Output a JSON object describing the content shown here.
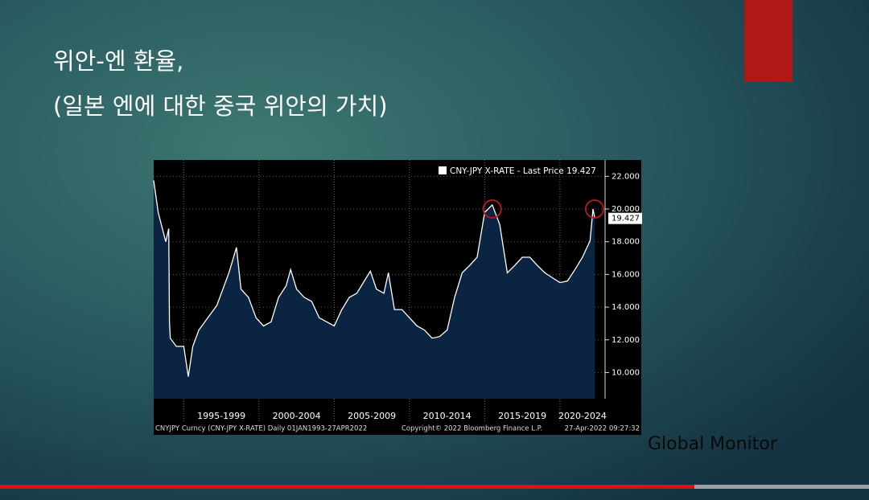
{
  "slide": {
    "title_line1": "위안-엔 환율,",
    "title_line2": "(일본 엔에 대한 중국 위안의 가치)",
    "watermark": "Global Monitor"
  },
  "chart_data": {
    "type": "area",
    "series": [
      {
        "name": "CNY-JPY X-RATE - Last Price",
        "color": "#ffffff",
        "x": [
          1993.0,
          1993.3,
          1993.8,
          1994.0,
          1994.05,
          1994.1,
          1994.5,
          1995.0,
          1995.3,
          1995.6,
          1996.0,
          1996.6,
          1997.2,
          1997.6,
          1998.0,
          1998.5,
          1998.8,
          1999.3,
          1999.8,
          2000.3,
          2000.8,
          2001.3,
          2001.8,
          2002.1,
          2002.5,
          2003.0,
          2003.5,
          2004.0,
          2004.5,
          2005.0,
          2005.5,
          2006.0,
          2006.5,
          2007.0,
          2007.4,
          2007.8,
          2008.3,
          2008.6,
          2009.0,
          2009.5,
          2010.0,
          2010.5,
          2011.0,
          2011.5,
          2012.0,
          2012.5,
          2013.0,
          2013.5,
          2014.0,
          2014.5,
          2015.0,
          2015.5,
          2016.0,
          2016.5,
          2017.0,
          2017.5,
          2018.0,
          2018.5,
          2019.0,
          2019.5,
          2020.0,
          2020.5,
          2021.0,
          2021.5,
          2022.0,
          2022.2,
          2022.32
        ],
        "values": [
          21.75,
          19.8,
          18.0,
          18.8,
          13.1,
          12.1,
          11.6,
          11.6,
          9.75,
          11.6,
          12.6,
          13.35,
          14.1,
          15.1,
          16.1,
          17.65,
          15.1,
          14.6,
          13.35,
          12.85,
          13.1,
          14.6,
          15.3,
          16.3,
          15.1,
          14.6,
          14.35,
          13.35,
          13.1,
          12.85,
          13.85,
          14.6,
          14.85,
          15.6,
          16.2,
          15.1,
          14.85,
          16.1,
          13.85,
          13.85,
          13.35,
          12.85,
          12.6,
          12.1,
          12.2,
          12.6,
          14.6,
          16.1,
          16.55,
          17.05,
          19.8,
          20.25,
          19.05,
          16.1,
          16.55,
          17.05,
          17.05,
          16.55,
          16.1,
          15.8,
          15.5,
          15.6,
          16.3,
          17.05,
          18.05,
          20.0,
          19.427
        ]
      }
    ],
    "area_color": "#0b2442",
    "highlights": {
      "x": [
        2015.5,
        2022.3
      ],
      "y": [
        20.0,
        20.0
      ],
      "color": "#b01818"
    },
    "xlim": [
      1993,
      2023
    ],
    "xticks": [
      1995,
      2000,
      2005,
      2010,
      2015,
      2020
    ],
    "period_labels": [
      "1995-1999",
      "2000-2004",
      "2005-2009",
      "2010-2014",
      "2015-2019",
      "2020-2024"
    ],
    "ylim": [
      8.4,
      23.0
    ],
    "yticks": [
      {
        "value": 10,
        "label": "10.000"
      },
      {
        "value": 12,
        "label": "12.000"
      },
      {
        "value": 14,
        "label": "14.000"
      },
      {
        "value": 16,
        "label": "16.000"
      },
      {
        "value": 18,
        "label": "18.000"
      },
      {
        "value": 20,
        "label": "20.000"
      },
      {
        "value": 22,
        "label": "22.000"
      }
    ],
    "grid": true,
    "footer_left": "CNYJPY Curncy (CNY-JPY X-RATE) Daily 01JAN1993-27APR2022",
    "footer_center": "Copyright© 2022 Bloomberg Finance L.P.",
    "footer_right": "27-Apr-2022 09:27:32"
  }
}
